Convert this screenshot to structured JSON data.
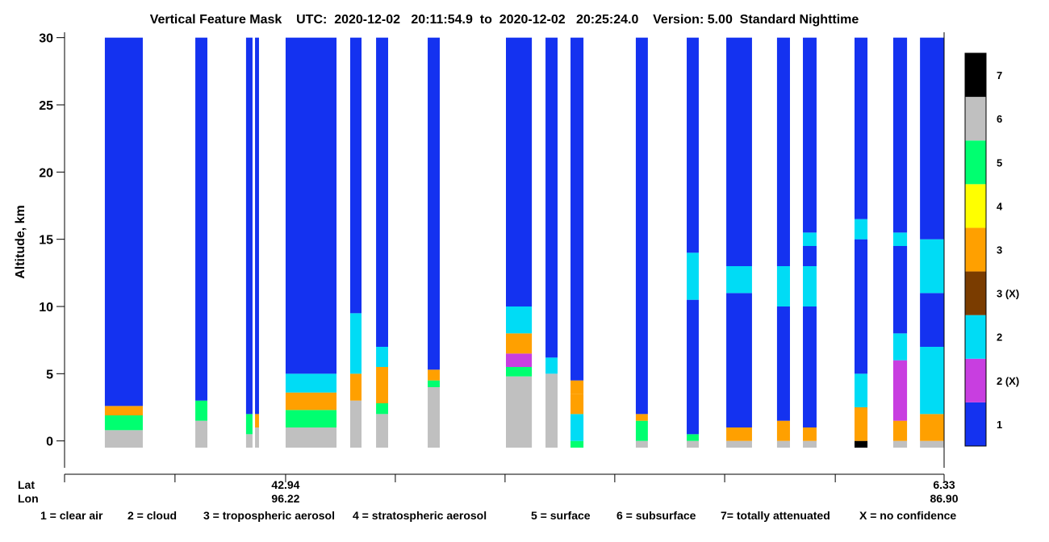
{
  "chart_data": {
    "type": "feature-mask",
    "title": "Vertical Feature Mask    UTC:  2020-12-02   20:11:54.9  to  2020-12-02   20:25:24.0    Version: 5.00  Standard Nighttime",
    "ylabel": "Altitude, km",
    "ylim": [
      -2,
      30.4
    ],
    "yticks": [
      0,
      5,
      10,
      15,
      20,
      25,
      30
    ],
    "xlim": [
      55.23,
      6.33
    ],
    "x_row_labels": [
      "Lat",
      "Lon"
    ],
    "xticks": [
      {
        "value": 42.94,
        "label": "42.94",
        "lon": "96.22"
      },
      {
        "value": 6.33,
        "label": "6.33",
        "lon": "86.90"
      }
    ],
    "minor_xticks": [
      55.23,
      49.09,
      36.84,
      30.74,
      24.64,
      18.53,
      12.38
    ],
    "classes": [
      {
        "label": "1",
        "color": "#1432f0"
      },
      {
        "label": "2 (X)",
        "color": "#c83ee0"
      },
      {
        "label": "2",
        "color": "#00dcf5"
      },
      {
        "label": "3 (X)",
        "color": "#7a3c00"
      },
      {
        "label": "3",
        "color": "#ffa000"
      },
      {
        "label": "4",
        "color": "#ffff00"
      },
      {
        "label": "5",
        "color": "#00ff70"
      },
      {
        "label": "6",
        "color": "#c0c0c0"
      },
      {
        "label": "7",
        "color": "#000000"
      }
    ],
    "legend": [
      "1 = clear air",
      "2 = cloud",
      "3 = tropospheric aerosol",
      "4 = stratospheric aerosol",
      "5 = surface",
      "6 = subsurface",
      "7= totally attenuated",
      "X = no confidence"
    ],
    "profiles": [
      {
        "lat": [
          52.99,
          50.88
        ],
        "layers": [
          [
            -0.5,
            0.8,
            7
          ],
          [
            0.8,
            1.9,
            6
          ],
          [
            1.9,
            2.6,
            4
          ],
          [
            2.6,
            30,
            0
          ]
        ]
      },
      {
        "lat": [
          47.96,
          47.29
        ],
        "layers": [
          [
            -0.5,
            1.5,
            7
          ],
          [
            1.5,
            3,
            6
          ],
          [
            3,
            30,
            0
          ]
        ]
      },
      {
        "lat": [
          45.14,
          44.78
        ],
        "layers": [
          [
            -0.5,
            0.5,
            7
          ],
          [
            0.5,
            2,
            6
          ],
          [
            2,
            30,
            0
          ]
        ]
      },
      {
        "lat": [
          44.64,
          44.42
        ],
        "layers": [
          [
            -0.5,
            1,
            7
          ],
          [
            1,
            2,
            4
          ],
          [
            2,
            30,
            0
          ]
        ]
      },
      {
        "lat": [
          42.94,
          40.11
        ],
        "layers": [
          [
            -0.5,
            1,
            7
          ],
          [
            1,
            2.3,
            6
          ],
          [
            2.3,
            3.6,
            4
          ],
          [
            3.6,
            5,
            2
          ],
          [
            5,
            30,
            0
          ]
        ]
      },
      {
        "lat": [
          39.35,
          38.72
        ],
        "layers": [
          [
            -0.5,
            3,
            7
          ],
          [
            3,
            5,
            4
          ],
          [
            5,
            9.5,
            2
          ],
          [
            9.5,
            30,
            0
          ]
        ]
      },
      {
        "lat": [
          37.91,
          37.24
        ],
        "layers": [
          [
            -0.5,
            2,
            7
          ],
          [
            2,
            2.8,
            6
          ],
          [
            2.8,
            5.5,
            4
          ],
          [
            5.5,
            7,
            2
          ],
          [
            7,
            30,
            0
          ]
        ]
      },
      {
        "lat": [
          35.04,
          34.37
        ],
        "layers": [
          [
            -0.5,
            4,
            7
          ],
          [
            4,
            4.5,
            6
          ],
          [
            4.5,
            5.3,
            4
          ],
          [
            5.3,
            30,
            0
          ]
        ]
      },
      {
        "lat": [
          30.69,
          29.25
        ],
        "layers": [
          [
            -0.5,
            4.8,
            7
          ],
          [
            4.8,
            5.5,
            6
          ],
          [
            5.5,
            6.5,
            1
          ],
          [
            6.5,
            8,
            4
          ],
          [
            8,
            10,
            2
          ],
          [
            10,
            30,
            0
          ]
        ]
      },
      {
        "lat": [
          28.49,
          27.82
        ],
        "layers": [
          [
            -0.5,
            5,
            7
          ],
          [
            5,
            6.2,
            2
          ],
          [
            6.2,
            30,
            0
          ]
        ]
      },
      {
        "lat": [
          27.1,
          26.38
        ],
        "layers": [
          [
            -0.5,
            0,
            6
          ],
          [
            0,
            2,
            2
          ],
          [
            2,
            3.5,
            4
          ],
          [
            3.5,
            4.5,
            4
          ],
          [
            4.5,
            30,
            0
          ]
        ]
      },
      {
        "lat": [
          23.47,
          22.8
        ],
        "layers": [
          [
            -0.5,
            0,
            7
          ],
          [
            0,
            1.5,
            6
          ],
          [
            1.5,
            2,
            4
          ],
          [
            2,
            30,
            0
          ]
        ]
      },
      {
        "lat": [
          20.64,
          19.97
        ],
        "layers": [
          [
            -0.5,
            0,
            7
          ],
          [
            0,
            0.5,
            6
          ],
          [
            0.5,
            10.5,
            0
          ],
          [
            10.5,
            14,
            2
          ],
          [
            14,
            30,
            0
          ]
        ]
      },
      {
        "lat": [
          18.44,
          17.01
        ],
        "layers": [
          [
            -0.5,
            0,
            7
          ],
          [
            0,
            1,
            4
          ],
          [
            1,
            11,
            0
          ],
          [
            11,
            13,
            2
          ],
          [
            13,
            30,
            0
          ]
        ]
      },
      {
        "lat": [
          15.62,
          14.9
        ],
        "layers": [
          [
            -0.5,
            0,
            7
          ],
          [
            0,
            1.5,
            4
          ],
          [
            1.5,
            10,
            0
          ],
          [
            10,
            13,
            2
          ],
          [
            13,
            30,
            0
          ]
        ]
      },
      {
        "lat": [
          14.18,
          13.42
        ],
        "layers": [
          [
            -0.5,
            0,
            7
          ],
          [
            0,
            1,
            4
          ],
          [
            1,
            10,
            0
          ],
          [
            10,
            13,
            2
          ],
          [
            13,
            14.5,
            0
          ],
          [
            14.5,
            15.5,
            2
          ],
          [
            15.5,
            30,
            0
          ]
        ]
      },
      {
        "lat": [
          11.31,
          10.59
        ],
        "layers": [
          [
            -0.5,
            0,
            8
          ],
          [
            0,
            2.5,
            4
          ],
          [
            2.5,
            5,
            2
          ],
          [
            5,
            15,
            0
          ],
          [
            15,
            16.5,
            2
          ],
          [
            16.5,
            30,
            0
          ]
        ]
      },
      {
        "lat": [
          9.16,
          8.39
        ],
        "layers": [
          [
            -0.5,
            0,
            7
          ],
          [
            0,
            1.5,
            4
          ],
          [
            1.5,
            6,
            1
          ],
          [
            6,
            8,
            2
          ],
          [
            8,
            14.5,
            0
          ],
          [
            14.5,
            15.5,
            2
          ],
          [
            15.5,
            30,
            0
          ]
        ]
      },
      {
        "lat": [
          7.67,
          6.33
        ],
        "layers": [
          [
            -0.5,
            0,
            7
          ],
          [
            0,
            2,
            4
          ],
          [
            2,
            7,
            2
          ],
          [
            7,
            11,
            0
          ],
          [
            11,
            15,
            2
          ],
          [
            15,
            30,
            0
          ]
        ]
      }
    ]
  }
}
